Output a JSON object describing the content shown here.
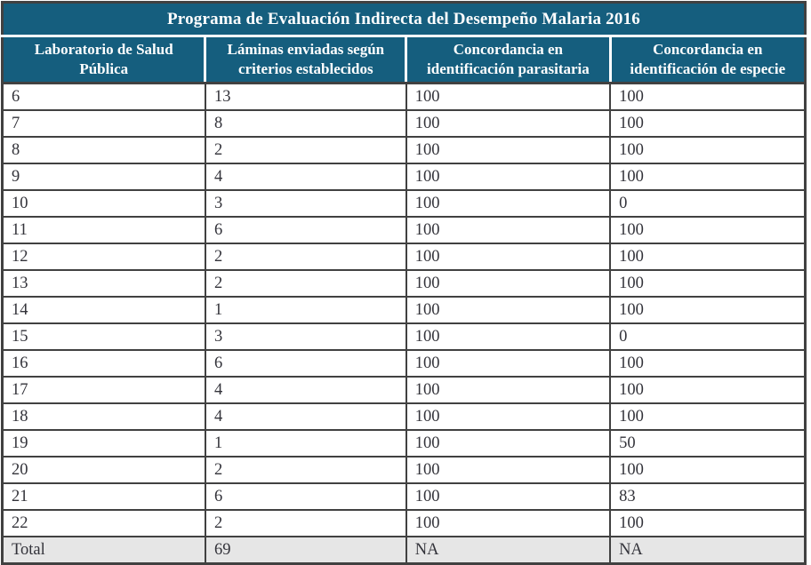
{
  "table": {
    "title": "Programa de Evaluación Indirecta del Desempeño Malaria 2016",
    "columns": [
      "Laboratorio de Salud Pública",
      "Láminas enviadas según criterios establecidos",
      "Concordancia en identificación parasitaria",
      "Concordancia en identificación de especie"
    ],
    "rows": [
      [
        "6",
        "13",
        "100",
        "100"
      ],
      [
        "7",
        "8",
        "100",
        "100"
      ],
      [
        "8",
        "2",
        "100",
        "100"
      ],
      [
        "9",
        "4",
        "100",
        "100"
      ],
      [
        "10",
        "3",
        "100",
        "0"
      ],
      [
        "11",
        "6",
        "100",
        "100"
      ],
      [
        "12",
        "2",
        "100",
        "100"
      ],
      [
        "13",
        "2",
        "100",
        "100"
      ],
      [
        "14",
        "1",
        "100",
        "100"
      ],
      [
        "15",
        "3",
        "100",
        "0"
      ],
      [
        "16",
        "6",
        "100",
        "100"
      ],
      [
        "17",
        "4",
        "100",
        "100"
      ],
      [
        "18",
        "4",
        "100",
        "100"
      ],
      [
        "19",
        "1",
        "100",
        "50"
      ],
      [
        "20",
        "2",
        "100",
        "100"
      ],
      [
        "21",
        "6",
        "100",
        "83"
      ],
      [
        "22",
        "2",
        "100",
        "100"
      ]
    ],
    "total_row": [
      "Total",
      "69",
      "NA",
      "NA"
    ]
  },
  "colors": {
    "header_bg": "#155e7e",
    "header_text": "#ffffff",
    "grid": "#414141",
    "body_text": "#33333a",
    "total_bg": "#e6e6e6"
  }
}
